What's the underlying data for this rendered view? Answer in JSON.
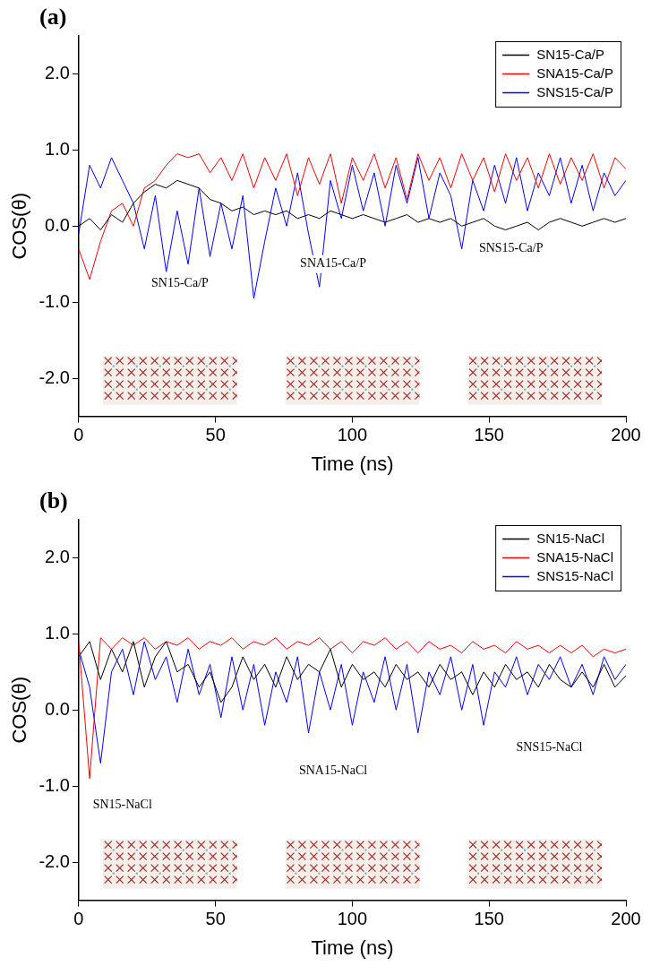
{
  "chart_data": [
    {
      "type": "line",
      "title": "(a)",
      "x_label": "Time (ns)",
      "y_label": "COS(θ)",
      "xlim": [
        0,
        200
      ],
      "xticks": [
        0,
        50,
        100,
        150,
        200
      ],
      "ylim": [
        -2.5,
        2.5
      ],
      "yticks": [
        {
          "value": -2,
          "label": "-2.0"
        },
        {
          "value": -1,
          "label": "-1.0"
        },
        {
          "value": 0,
          "label": "0.0"
        },
        {
          "value": 1,
          "label": "1.0"
        },
        {
          "value": 2,
          "label": "2.0"
        }
      ],
      "grid": false,
      "legend": "upper right",
      "marker": "none",
      "x": [
        0,
        4,
        8,
        12,
        16,
        20,
        24,
        28,
        32,
        36,
        40,
        44,
        48,
        52,
        56,
        60,
        64,
        68,
        72,
        76,
        80,
        84,
        88,
        92,
        96,
        100,
        104,
        108,
        112,
        116,
        120,
        124,
        128,
        132,
        136,
        140,
        144,
        148,
        152,
        156,
        160,
        164,
        168,
        172,
        176,
        180,
        184,
        188,
        192,
        196,
        200
      ],
      "series": [
        {
          "name": "SN15-Ca/P",
          "color": "#000000",
          "values": [
            0.0,
            0.1,
            -0.05,
            0.15,
            0.05,
            0.3,
            0.45,
            0.55,
            0.5,
            0.6,
            0.55,
            0.5,
            0.35,
            0.3,
            0.2,
            0.25,
            0.15,
            0.2,
            0.15,
            0.2,
            0.1,
            0.15,
            0.1,
            0.2,
            0.15,
            0.1,
            0.15,
            0.1,
            0.05,
            0.1,
            0.15,
            0.05,
            0.1,
            0.05,
            0.1,
            0.0,
            0.05,
            0.1,
            0.0,
            -0.05,
            0.0,
            0.05,
            -0.05,
            0.05,
            0.1,
            0.05,
            0.0,
            0.05,
            0.1,
            0.05,
            0.1
          ]
        },
        {
          "name": "SNA15-Ca/P",
          "color": "#ff0000",
          "values": [
            -0.3,
            -0.7,
            -0.2,
            0.2,
            0.3,
            0.0,
            0.5,
            0.6,
            0.8,
            0.95,
            0.9,
            0.95,
            0.7,
            0.9,
            0.6,
            0.95,
            0.5,
            0.9,
            0.6,
            0.95,
            0.4,
            0.9,
            0.55,
            0.95,
            0.3,
            0.9,
            0.6,
            0.95,
            0.5,
            0.9,
            0.35,
            0.95,
            0.6,
            0.9,
            0.5,
            0.95,
            0.6,
            0.9,
            0.45,
            0.95,
            0.6,
            0.9,
            0.5,
            0.95,
            0.55,
            0.9,
            0.6,
            0.95,
            0.5,
            0.9,
            0.75
          ]
        },
        {
          "name": "SNS15-Ca/P",
          "color": "#0000ff",
          "values": [
            -0.1,
            0.8,
            0.5,
            0.9,
            0.6,
            0.3,
            -0.3,
            0.4,
            -0.6,
            0.2,
            -0.5,
            0.5,
            -0.4,
            0.3,
            -0.3,
            0.4,
            -0.95,
            -0.2,
            0.5,
            0.0,
            0.7,
            -0.1,
            -0.8,
            0.6,
            0.1,
            0.8,
            0.2,
            0.7,
            0.0,
            0.8,
            0.3,
            0.9,
            0.1,
            0.7,
            0.4,
            -0.3,
            0.6,
            0.2,
            0.8,
            0.3,
            0.9,
            0.2,
            0.7,
            0.4,
            0.9,
            0.3,
            0.8,
            0.2,
            0.7,
            0.4,
            0.6
          ]
        }
      ],
      "annotations": [
        {
          "text": "SN15-Ca/P",
          "x": 37,
          "y": -0.75
        },
        {
          "text": "SNA15-Ca/P",
          "x": 93,
          "y": -0.5
        },
        {
          "text": "SNS15-Ca/P",
          "x": 158,
          "y": -0.3
        }
      ]
    },
    {
      "type": "line",
      "title": "(b)",
      "x_label": "Time (ns)",
      "y_label": "COS(θ)",
      "xlim": [
        0,
        200
      ],
      "xticks": [
        0,
        50,
        100,
        150,
        200
      ],
      "ylim": [
        -2.5,
        2.5
      ],
      "yticks": [
        {
          "value": -2,
          "label": "-2.0"
        },
        {
          "value": -1,
          "label": "-1.0"
        },
        {
          "value": 0,
          "label": "0.0"
        },
        {
          "value": 1,
          "label": "1.0"
        },
        {
          "value": 2,
          "label": "2.0"
        }
      ],
      "grid": false,
      "legend": "upper right",
      "marker": "none",
      "x": [
        0,
        4,
        8,
        12,
        16,
        20,
        24,
        28,
        32,
        36,
        40,
        44,
        48,
        52,
        56,
        60,
        64,
        68,
        72,
        76,
        80,
        84,
        88,
        92,
        96,
        100,
        104,
        108,
        112,
        116,
        120,
        124,
        128,
        132,
        136,
        140,
        144,
        148,
        152,
        156,
        160,
        164,
        168,
        172,
        176,
        180,
        184,
        188,
        192,
        196,
        200
      ],
      "series": [
        {
          "name": "SN15-NaCl",
          "color": "#000000",
          "values": [
            0.7,
            0.9,
            0.4,
            0.8,
            0.5,
            0.9,
            0.3,
            0.7,
            0.9,
            0.5,
            0.6,
            0.3,
            0.5,
            0.1,
            0.3,
            0.7,
            0.4,
            0.6,
            0.3,
            0.7,
            0.4,
            0.6,
            0.5,
            0.8,
            0.3,
            0.6,
            0.4,
            0.5,
            0.3,
            0.6,
            0.4,
            0.5,
            0.3,
            0.6,
            0.4,
            0.5,
            0.2,
            0.5,
            0.3,
            0.6,
            0.4,
            0.5,
            0.3,
            0.6,
            0.4,
            0.3,
            0.5,
            0.3,
            0.6,
            0.3,
            0.45
          ]
        },
        {
          "name": "SNA15-NaCl",
          "color": "#ff0000",
          "values": [
            0.9,
            -0.9,
            0.95,
            0.8,
            0.95,
            0.85,
            0.95,
            0.8,
            0.9,
            0.85,
            0.95,
            0.8,
            0.9,
            0.85,
            0.95,
            0.8,
            0.9,
            0.85,
            0.95,
            0.8,
            0.9,
            0.85,
            0.95,
            0.8,
            0.9,
            0.75,
            0.9,
            0.85,
            0.95,
            0.8,
            0.9,
            0.75,
            0.9,
            0.8,
            0.85,
            0.75,
            0.9,
            0.8,
            0.85,
            0.75,
            0.9,
            0.8,
            0.85,
            0.75,
            0.85,
            0.75,
            0.85,
            0.7,
            0.8,
            0.75,
            0.8
          ]
        },
        {
          "name": "SNS15-NaCl",
          "color": "#0000ff",
          "values": [
            0.8,
            0.3,
            -0.7,
            0.5,
            0.8,
            0.2,
            0.9,
            0.4,
            0.7,
            0.1,
            0.8,
            0.2,
            0.6,
            -0.1,
            0.7,
            0.0,
            0.6,
            -0.2,
            0.5,
            0.1,
            0.7,
            -0.3,
            0.5,
            0.0,
            0.6,
            -0.2,
            0.5,
            0.1,
            0.7,
            0.0,
            0.6,
            -0.3,
            0.5,
            0.2,
            0.7,
            0.0,
            0.6,
            -0.2,
            0.5,
            0.3,
            0.7,
            0.2,
            0.6,
            0.4,
            0.7,
            0.3,
            0.6,
            0.2,
            0.7,
            0.4,
            0.6
          ]
        }
      ],
      "annotations": [
        {
          "text": "SN15-NaCl",
          "x": 16,
          "y": -1.25
        },
        {
          "text": "SNA15-NaCl",
          "x": 93,
          "y": -0.8
        },
        {
          "text": "SNS15-NaCl",
          "x": 172,
          "y": -0.5
        }
      ]
    }
  ]
}
